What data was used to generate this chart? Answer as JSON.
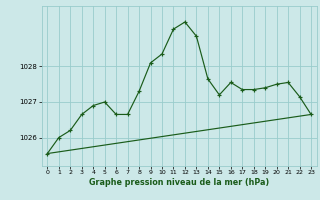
{
  "title": "Graphe pression niveau de la mer (hPa)",
  "bg_color": "#cce8e8",
  "grid_color": "#99cccc",
  "line_color": "#1a5c1a",
  "xlim": [
    -0.5,
    23.5
  ],
  "ylim": [
    1025.2,
    1029.7
  ],
  "yticks": [
    1026,
    1027,
    1028
  ],
  "xticks": [
    0,
    1,
    2,
    3,
    4,
    5,
    6,
    7,
    8,
    9,
    10,
    11,
    12,
    13,
    14,
    15,
    16,
    17,
    18,
    19,
    20,
    21,
    22,
    23
  ],
  "series1_x": [
    0,
    1,
    2,
    3,
    4,
    5,
    6,
    7,
    8,
    9,
    10,
    11,
    12,
    13,
    14,
    15,
    16,
    17,
    18,
    19,
    20,
    21,
    22,
    23
  ],
  "series1_y": [
    1025.55,
    1026.0,
    1026.2,
    1026.65,
    1026.9,
    1027.0,
    1026.65,
    1026.65,
    1027.3,
    1028.1,
    1028.35,
    1029.05,
    1029.25,
    1028.85,
    1027.65,
    1027.2,
    1027.55,
    1027.35,
    1027.35,
    1027.4,
    1027.5,
    1027.55,
    1027.15,
    1026.65
  ],
  "series2_x": [
    0,
    23
  ],
  "series2_y": [
    1025.55,
    1026.65
  ]
}
